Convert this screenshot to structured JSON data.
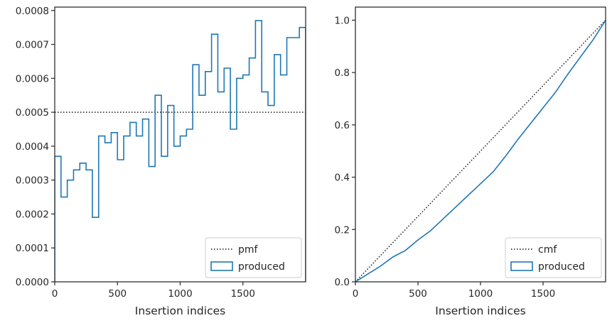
{
  "chart_data": [
    {
      "type": "line",
      "panel": "left",
      "xlabel": "Insertion indices",
      "ylabel": "",
      "xlim": [
        0,
        2000
      ],
      "ylim": [
        0,
        0.00081
      ],
      "xticks": [
        0,
        500,
        1000,
        1500
      ],
      "xtick_labels": [
        "0",
        "500",
        "1000",
        "1500"
      ],
      "yticks": [
        0,
        0.0001,
        0.0002,
        0.0003,
        0.0004,
        0.0005,
        0.0006,
        0.0007,
        0.0008
      ],
      "ytick_labels": [
        "0.0000",
        "0.0001",
        "0.0002",
        "0.0003",
        "0.0004",
        "0.0005",
        "0.0006",
        "0.0007",
        "0.0008"
      ],
      "grid": false,
      "legend": "lower right",
      "series": [
        {
          "name": "pmf",
          "style": "dotted",
          "color": "#1a1a1a",
          "x": [
            0,
            2000
          ],
          "y": [
            0.0005,
            0.0005
          ]
        },
        {
          "name": "produced",
          "style": "step-histogram",
          "color": "#1f77b4",
          "bin_width": 50,
          "values": [
            0.00037,
            0.00025,
            0.0003,
            0.00033,
            0.00035,
            0.00033,
            0.00019,
            0.00043,
            0.00041,
            0.00044,
            0.00036,
            0.00043,
            0.00047,
            0.00043,
            0.00048,
            0.00034,
            0.00055,
            0.00037,
            0.00052,
            0.0004,
            0.00043,
            0.00045,
            0.00064,
            0.00055,
            0.00062,
            0.00073,
            0.00056,
            0.00063,
            0.00045,
            0.0006,
            0.00061,
            0.00066,
            0.00077,
            0.00056,
            0.00052,
            0.00067,
            0.00061,
            0.00072,
            0.00072,
            0.00075
          ]
        }
      ]
    },
    {
      "type": "line",
      "panel": "right",
      "xlabel": "Insertion indices",
      "ylabel": "",
      "xlim": [
        0,
        2000
      ],
      "ylim": [
        0,
        1.05
      ],
      "xticks": [
        0,
        500,
        1000,
        1500
      ],
      "xtick_labels": [
        "0",
        "500",
        "1000",
        "1500"
      ],
      "yticks": [
        0,
        0.2,
        0.4,
        0.6,
        0.8,
        1.0
      ],
      "ytick_labels": [
        "0.0",
        "0.2",
        "0.4",
        "0.6",
        "0.8",
        "1.0"
      ],
      "grid": false,
      "legend": "lower right",
      "series": [
        {
          "name": "cmf",
          "style": "dotted",
          "color": "#1a1a1a",
          "x": [
            0,
            2000
          ],
          "y": [
            0,
            1.0
          ]
        },
        {
          "name": "produced",
          "style": "solid",
          "color": "#1f77b4",
          "x": [
            0,
            100,
            200,
            300,
            400,
            500,
            600,
            700,
            800,
            900,
            1000,
            1100,
            1200,
            1300,
            1400,
            1500,
            1600,
            1700,
            1800,
            1900,
            2000
          ],
          "y": [
            0,
            0.03,
            0.06,
            0.095,
            0.12,
            0.16,
            0.195,
            0.24,
            0.285,
            0.33,
            0.375,
            0.42,
            0.48,
            0.545,
            0.605,
            0.665,
            0.725,
            0.795,
            0.86,
            0.925,
            1.0
          ]
        }
      ]
    }
  ],
  "colors": {
    "produced": "#1f77b4",
    "reference": "#1a1a1a",
    "axes": "#262626"
  }
}
